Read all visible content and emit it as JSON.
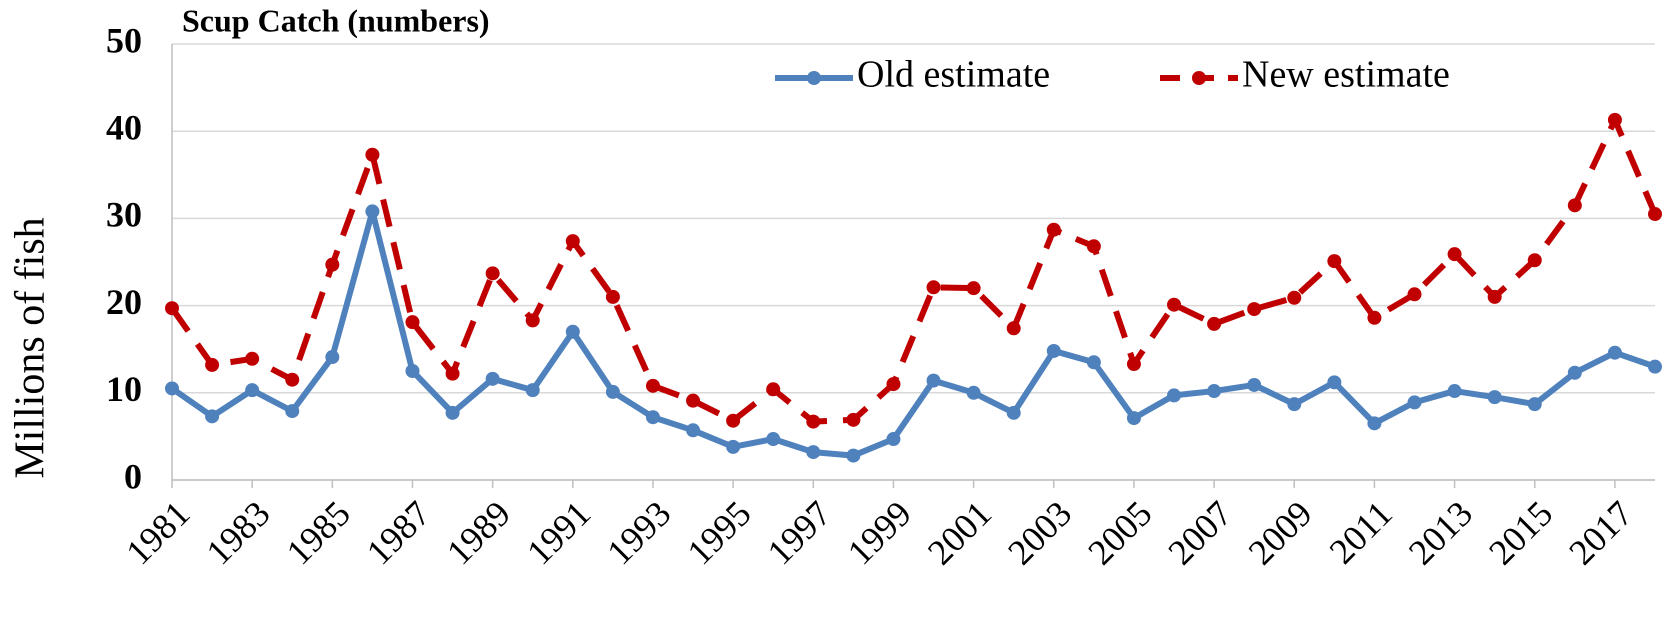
{
  "chart_data": {
    "type": "line",
    "title": "Scup Catch (numbers)",
    "y_label": "Millions of fish",
    "x": [
      1981,
      1982,
      1983,
      1984,
      1985,
      1986,
      1987,
      1988,
      1989,
      1990,
      1991,
      1992,
      1993,
      1994,
      1995,
      1996,
      1997,
      1998,
      1999,
      2000,
      2001,
      2002,
      2003,
      2004,
      2005,
      2006,
      2007,
      2008,
      2009,
      2010,
      2011,
      2012,
      2013,
      2014,
      2015,
      2016,
      2017,
      2018
    ],
    "series": [
      {
        "name": "Old estimate",
        "color": "#4f81bd",
        "dashed": false,
        "values": [
          10.5,
          7.3,
          10.3,
          7.9,
          14.1,
          30.8,
          12.5,
          7.7,
          11.6,
          10.3,
          17.0,
          10.1,
          7.2,
          5.7,
          3.8,
          4.7,
          3.2,
          2.8,
          4.7,
          11.4,
          10.0,
          7.7,
          14.8,
          13.5,
          7.1,
          9.7,
          10.2,
          10.9,
          8.7,
          11.2,
          6.5,
          8.9,
          10.2,
          9.5,
          8.7,
          12.3,
          14.6,
          13.0
        ]
      },
      {
        "name": "New estimate",
        "color": "#c00000",
        "dashed": true,
        "values": [
          19.7,
          13.2,
          13.9,
          11.5,
          24.7,
          37.3,
          18.1,
          12.2,
          23.7,
          18.3,
          27.4,
          21.0,
          10.8,
          9.1,
          6.8,
          10.4,
          6.7,
          6.9,
          11.0,
          22.1,
          22.0,
          17.4,
          28.7,
          26.8,
          13.3,
          20.1,
          17.9,
          19.6,
          20.9,
          25.1,
          18.6,
          21.3,
          25.9,
          21.0,
          25.2,
          31.5,
          41.3,
          30.5
        ]
      }
    ],
    "xlim": [
      1981,
      2018
    ],
    "xticks": [
      1981,
      1983,
      1985,
      1987,
      1989,
      1991,
      1993,
      1995,
      1997,
      1999,
      2001,
      2003,
      2005,
      2007,
      2009,
      2011,
      2013,
      2015,
      2017
    ],
    "ylim": [
      0,
      50
    ],
    "yticks": [
      0,
      10,
      20,
      30,
      40,
      50
    ],
    "grid": true,
    "legend": "top"
  }
}
